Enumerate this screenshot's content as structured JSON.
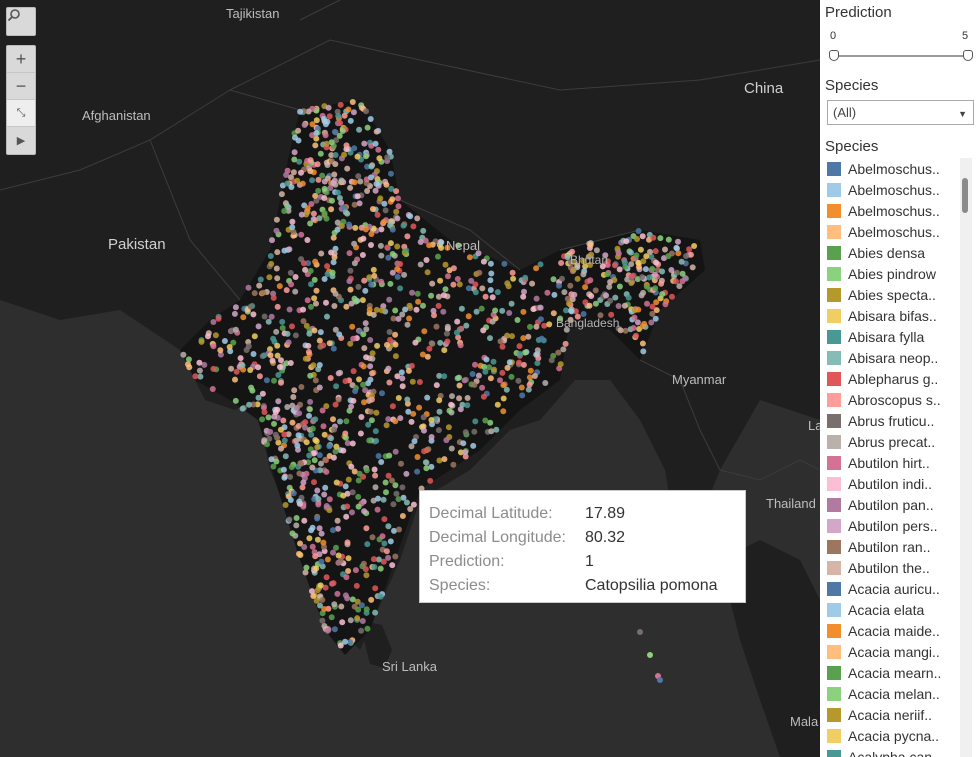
{
  "map": {
    "labels": {
      "tajikistan": "Tajikistan",
      "china": "China",
      "afghanistan": "Afghanistan",
      "pakistan": "Pakistan",
      "nepal": "Nepal",
      "bhutan": "Bhutan",
      "bangladesh": "Bangladesh",
      "myanmar": "Myanmar",
      "thailand": "Thailand",
      "sri_lanka": "Sri Lanka",
      "mala": "Mala",
      "la": "La"
    },
    "point_colors": [
      "#4e79a7",
      "#a0cbe8",
      "#f28e2b",
      "#ffbe7d",
      "#59a14f",
      "#8cd17d",
      "#b6992d",
      "#f1ce63",
      "#499894",
      "#86bcb6",
      "#e15759",
      "#ff9d9a",
      "#79706e",
      "#bab0ac",
      "#d37295",
      "#fabfd2",
      "#b07aa1",
      "#d4a6c8",
      "#9d7660",
      "#d7b5a6"
    ],
    "icons": [
      "search-icon",
      "zoom-in-icon",
      "zoom-out-icon",
      "reset-map-icon",
      "expand-toolbar-icon"
    ]
  },
  "tooltip": {
    "rows": [
      {
        "key": "Decimal Latitude:",
        "value": "17.89"
      },
      {
        "key": "Decimal Longitude:",
        "value": "80.32"
      },
      {
        "key": "Prediction:",
        "value": "1"
      },
      {
        "key": "Species:",
        "value": "Catopsilia pomona"
      }
    ]
  },
  "panel": {
    "prediction_title": "Prediction",
    "prediction_min": "0",
    "prediction_max": "5",
    "prediction_range": [
      0,
      5
    ],
    "species_filter_title": "Species",
    "species_filter_value": "(All)",
    "legend_title": "Species",
    "legend_items": [
      {
        "label": "Abelmoschus..",
        "color": "#4e79a7"
      },
      {
        "label": "Abelmoschus..",
        "color": "#a0cbe8"
      },
      {
        "label": "Abelmoschus..",
        "color": "#f28e2b"
      },
      {
        "label": "Abelmoschus..",
        "color": "#ffbe7d"
      },
      {
        "label": "Abies densa",
        "color": "#59a14f"
      },
      {
        "label": "Abies pindrow",
        "color": "#8cd17d"
      },
      {
        "label": "Abies specta..",
        "color": "#b6992d"
      },
      {
        "label": "Abisara bifas..",
        "color": "#f1ce63"
      },
      {
        "label": "Abisara fylla",
        "color": "#499894"
      },
      {
        "label": "Abisara neop..",
        "color": "#86bcb6"
      },
      {
        "label": "Ablepharus g..",
        "color": "#e15759"
      },
      {
        "label": "Abroscopus s..",
        "color": "#ff9d9a"
      },
      {
        "label": "Abrus fruticu..",
        "color": "#79706e"
      },
      {
        "label": "Abrus precat..",
        "color": "#bab0ac"
      },
      {
        "label": "Abutilon hirt..",
        "color": "#d37295"
      },
      {
        "label": "Abutilon indi..",
        "color": "#fabfd2"
      },
      {
        "label": "Abutilon pan..",
        "color": "#b07aa1"
      },
      {
        "label": "Abutilon pers..",
        "color": "#d4a6c8"
      },
      {
        "label": "Abutilon ran..",
        "color": "#9d7660"
      },
      {
        "label": "Abutilon the..",
        "color": "#d7b5a6"
      },
      {
        "label": "Acacia auricu..",
        "color": "#4e79a7"
      },
      {
        "label": "Acacia elata",
        "color": "#a0cbe8"
      },
      {
        "label": "Acacia maide..",
        "color": "#f28e2b"
      },
      {
        "label": "Acacia mangi..",
        "color": "#ffbe7d"
      },
      {
        "label": "Acacia mearn..",
        "color": "#59a14f"
      },
      {
        "label": "Acacia melan..",
        "color": "#8cd17d"
      },
      {
        "label": "Acacia neriif..",
        "color": "#b6992d"
      },
      {
        "label": "Acacia pycna..",
        "color": "#f1ce63"
      },
      {
        "label": "Acalypha can..",
        "color": "#499894"
      }
    ]
  }
}
